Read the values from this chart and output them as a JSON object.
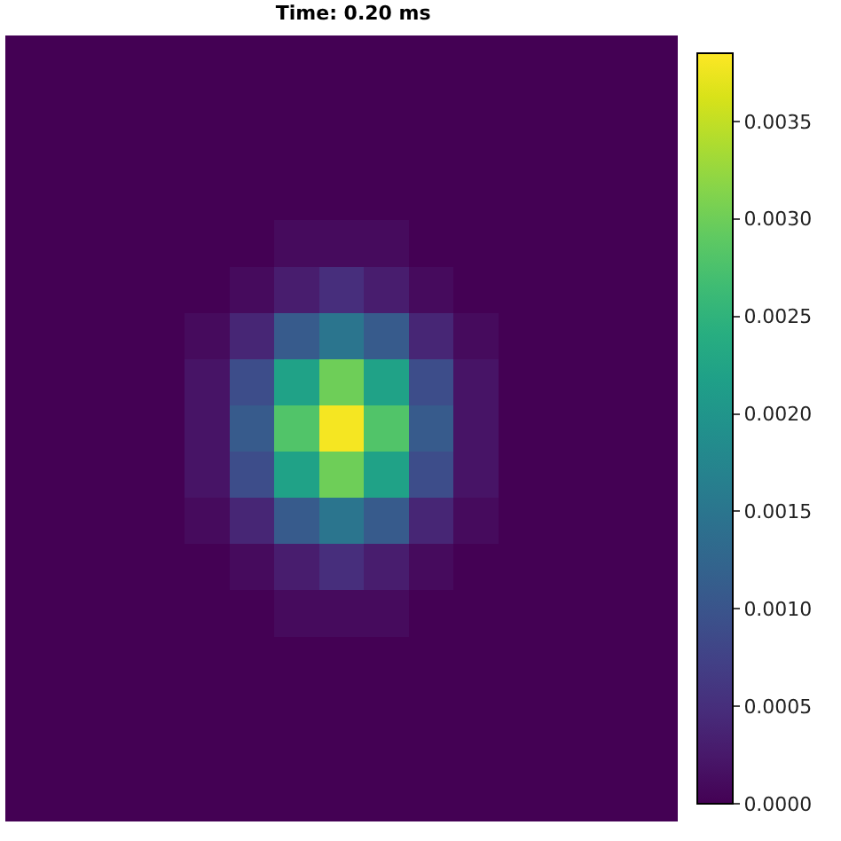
{
  "chart_data": {
    "type": "heatmap",
    "title": "Time: 0.20 ms",
    "categories": [
      null,
      null,
      null,
      null,
      null,
      null,
      null,
      null,
      null,
      null,
      null,
      null,
      null,
      null,
      null
    ],
    "y_categories": [
      null,
      null,
      null,
      null,
      null,
      null,
      null,
      null,
      null,
      null,
      null,
      null,
      null,
      null,
      null,
      null,
      null
    ],
    "cells": [
      [
        0,
        0,
        0,
        0,
        0,
        0,
        0,
        0,
        0,
        0,
        0,
        0,
        0,
        0,
        0
      ],
      [
        0,
        0,
        0,
        0,
        0,
        0,
        0,
        0,
        0,
        0,
        0,
        0,
        0,
        0,
        0
      ],
      [
        0,
        0,
        0,
        0,
        0,
        0,
        0,
        0,
        0,
        0,
        0,
        0,
        0,
        0,
        0
      ],
      [
        0,
        0,
        0,
        0,
        0,
        0,
        0,
        0,
        0,
        0,
        0,
        0,
        0,
        0,
        0
      ],
      [
        0,
        0,
        0,
        0,
        0,
        0,
        0.0001,
        0.0001,
        0.0001,
        0,
        0,
        0,
        0,
        0,
        0
      ],
      [
        0,
        0,
        0,
        0,
        0,
        0.0001,
        0.0003,
        0.0005,
        0.0003,
        0.0001,
        0,
        0,
        0,
        0,
        0
      ],
      [
        0,
        0,
        0,
        0,
        0.0001,
        0.0004,
        0.0011,
        0.0015,
        0.0011,
        0.0004,
        0.0001,
        0,
        0,
        0,
        0
      ],
      [
        0,
        0,
        0,
        0,
        0.0002,
        0.0009,
        0.0022,
        0.003,
        0.0022,
        0.0009,
        0.0002,
        0,
        0,
        0,
        0
      ],
      [
        0,
        0,
        0,
        0,
        0.0002,
        0.0011,
        0.0028,
        0.0038,
        0.0028,
        0.0011,
        0.0002,
        0,
        0,
        0,
        0
      ],
      [
        0,
        0,
        0,
        0,
        0.0002,
        0.0009,
        0.0022,
        0.003,
        0.0022,
        0.0009,
        0.0002,
        0,
        0,
        0,
        0
      ],
      [
        0,
        0,
        0,
        0,
        0.0001,
        0.0004,
        0.0011,
        0.0015,
        0.0011,
        0.0004,
        0.0001,
        0,
        0,
        0,
        0
      ],
      [
        0,
        0,
        0,
        0,
        0,
        0.0001,
        0.0003,
        0.0005,
        0.0003,
        0.0001,
        0,
        0,
        0,
        0,
        0
      ],
      [
        0,
        0,
        0,
        0,
        0,
        0,
        0.0001,
        0.0001,
        0.0001,
        0,
        0,
        0,
        0,
        0,
        0
      ],
      [
        0,
        0,
        0,
        0,
        0,
        0,
        0,
        0,
        0,
        0,
        0,
        0,
        0,
        0,
        0
      ],
      [
        0,
        0,
        0,
        0,
        0,
        0,
        0,
        0,
        0,
        0,
        0,
        0,
        0,
        0,
        0
      ],
      [
        0,
        0,
        0,
        0,
        0,
        0,
        0,
        0,
        0,
        0,
        0,
        0,
        0,
        0,
        0
      ],
      [
        0,
        0,
        0,
        0,
        0,
        0,
        0,
        0,
        0,
        0,
        0,
        0,
        0,
        0,
        0
      ]
    ],
    "clim": [
      0,
      0.00385
    ],
    "cticks": [
      {
        "value": 0,
        "label": "0.0000"
      },
      {
        "value": 0.0005,
        "label": "0.0005"
      },
      {
        "value": 0.001,
        "label": "0.0010"
      },
      {
        "value": 0.0015,
        "label": "0.0015"
      },
      {
        "value": 0.002,
        "label": "0.0020"
      },
      {
        "value": 0.0025,
        "label": "0.0025"
      },
      {
        "value": 0.003,
        "label": "0.0030"
      },
      {
        "value": 0.0035,
        "label": "0.0035"
      }
    ]
  }
}
